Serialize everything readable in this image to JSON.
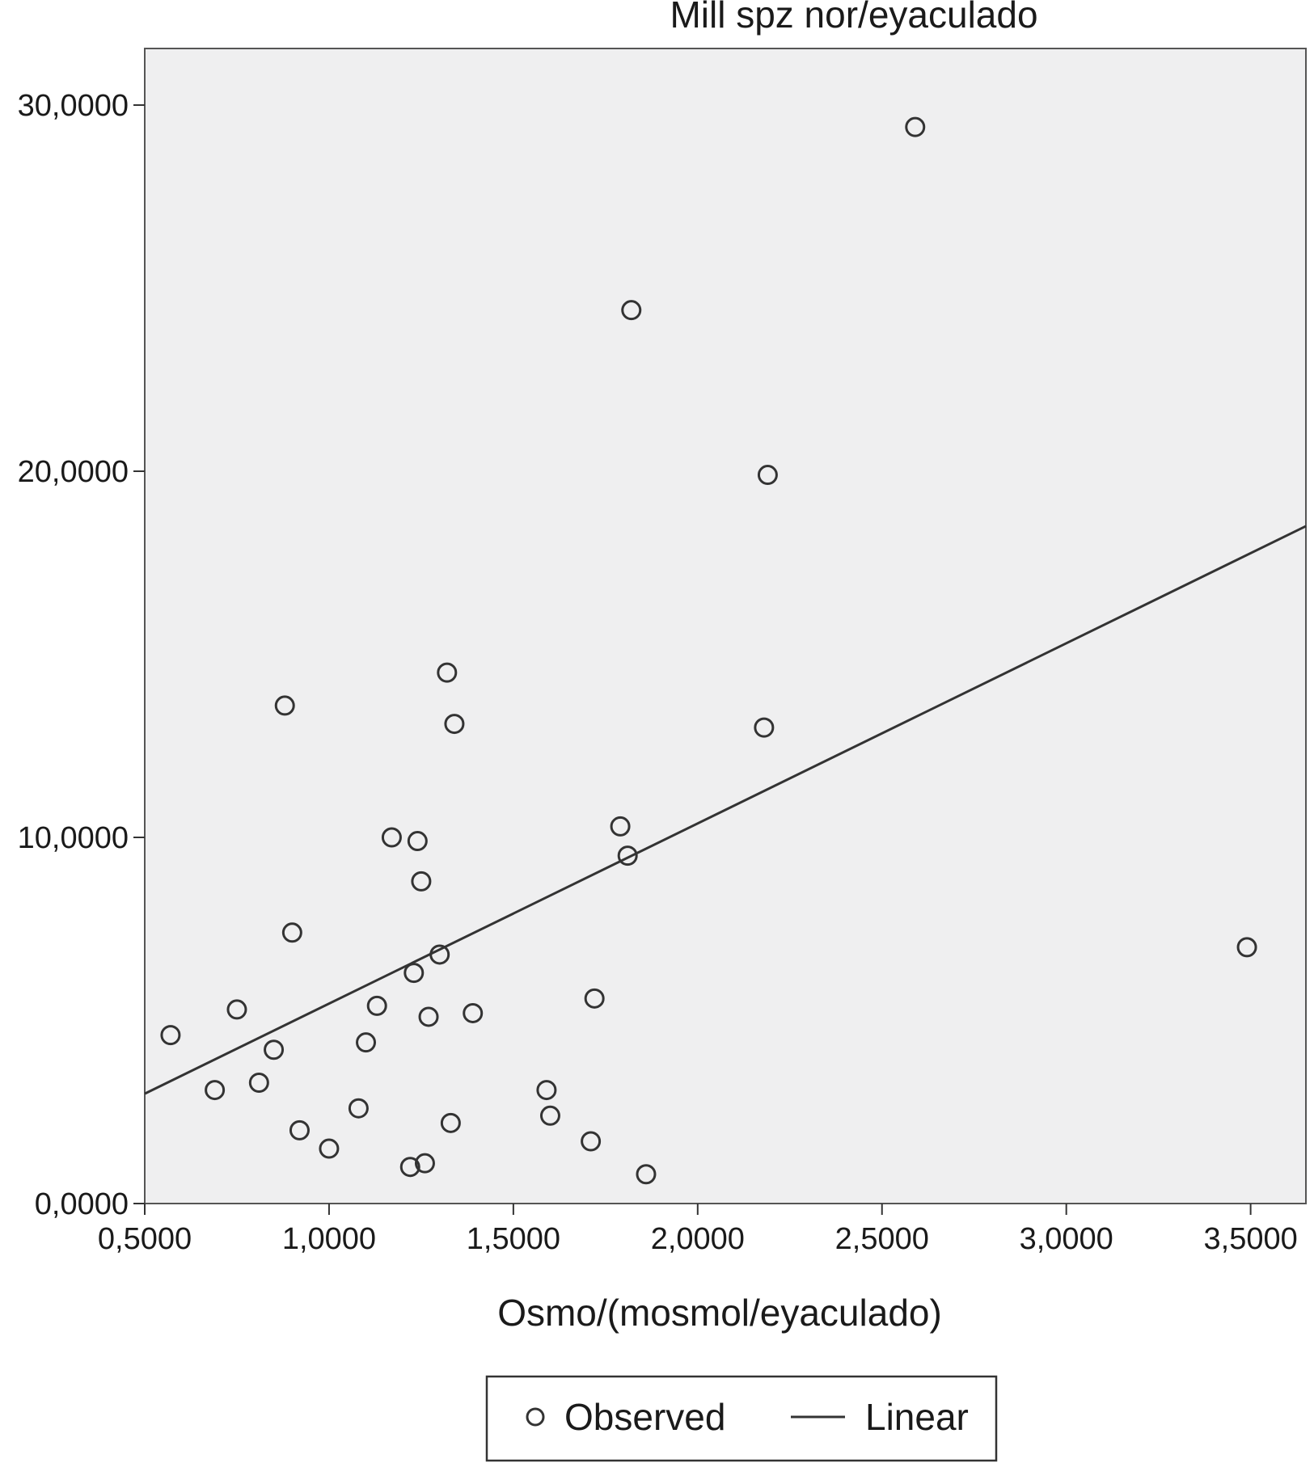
{
  "chart_data": {
    "type": "scatter",
    "title": "",
    "ylabel": "Mill spz nor/eyaculado",
    "xlabel": "Osmo/(mosmol/eyaculado)",
    "xlim": [
      0.5,
      3.65
    ],
    "ylim": [
      0,
      30.0
    ],
    "x_ticks": [
      0.5,
      1.0,
      1.5,
      2.0,
      2.5,
      3.0,
      3.5
    ],
    "x_tick_labels": [
      "0,5000",
      "1,0000",
      "1,5000",
      "2,0000",
      "2,5000",
      "3,0000",
      "3,5000"
    ],
    "y_ticks": [
      0,
      10,
      20,
      30
    ],
    "y_tick_labels": [
      "0,0000",
      "10,0000",
      "20,0000",
      "30,0000"
    ],
    "grid": false,
    "plot_background": "#efeff0",
    "mark_color": "#333333",
    "series": [
      {
        "name": "Observed",
        "marker": "circle-open",
        "points": [
          [
            0.57,
            4.6
          ],
          [
            0.69,
            3.1
          ],
          [
            0.75,
            5.3
          ],
          [
            0.81,
            3.3
          ],
          [
            0.85,
            4.2
          ],
          [
            0.88,
            13.6
          ],
          [
            0.9,
            7.4
          ],
          [
            0.92,
            2.0
          ],
          [
            1.0,
            1.5
          ],
          [
            1.08,
            2.6
          ],
          [
            1.1,
            4.4
          ],
          [
            1.13,
            5.4
          ],
          [
            1.17,
            10.0
          ],
          [
            1.22,
            1.0
          ],
          [
            1.23,
            6.3
          ],
          [
            1.24,
            9.9
          ],
          [
            1.25,
            8.8
          ],
          [
            1.26,
            1.1
          ],
          [
            1.27,
            5.1
          ],
          [
            1.3,
            6.8
          ],
          [
            1.32,
            14.5
          ],
          [
            1.33,
            2.2
          ],
          [
            1.34,
            13.1
          ],
          [
            1.39,
            5.2
          ],
          [
            1.59,
            3.1
          ],
          [
            1.6,
            2.4
          ],
          [
            1.71,
            1.7
          ],
          [
            1.72,
            5.6
          ],
          [
            1.79,
            10.3
          ],
          [
            1.81,
            9.5
          ],
          [
            1.82,
            24.4
          ],
          [
            1.86,
            0.8
          ],
          [
            2.18,
            13.0
          ],
          [
            2.19,
            19.9
          ],
          [
            2.59,
            29.4
          ],
          [
            3.49,
            7.0
          ]
        ]
      },
      {
        "name": "Linear",
        "line": [
          [
            0.5,
            3.0
          ],
          [
            3.65,
            18.5
          ]
        ]
      }
    ],
    "legend": {
      "position": "bottom-center",
      "entries": [
        "Observed",
        "Linear"
      ]
    }
  }
}
